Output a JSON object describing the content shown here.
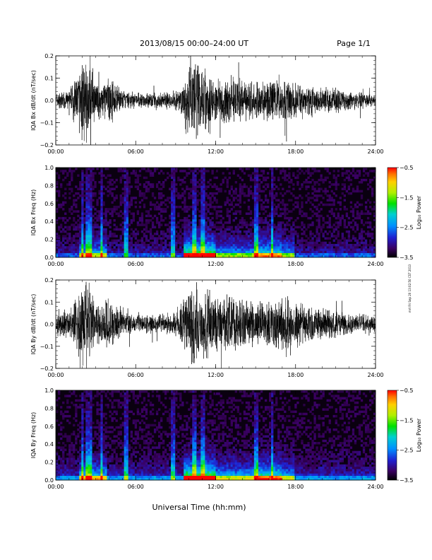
{
  "header": {
    "title": "2013/08/15  00:00–24:00 UT",
    "page": "Page 1/1"
  },
  "side_stamp": "mrt Fri Sep 20 13:02:50 CST 2013",
  "chart_data": [
    {
      "type": "line",
      "ylabel": "IQA Bx dB/dt (nT/sec)",
      "ylim": [
        -0.2,
        0.2
      ],
      "yticks": [
        "0.2",
        "0.1",
        "0.0",
        "−0.1",
        "−0.2"
      ],
      "xticks": [
        "00:00",
        "06:00",
        "12:00",
        "18:00",
        "24:00"
      ],
      "xlim_hours": [
        0,
        24
      ],
      "amplitude_envelope": {
        "hours": [
          0,
          1,
          2,
          2.5,
          3,
          4,
          5,
          6,
          7,
          8,
          9,
          9.5,
          10,
          10.5,
          11,
          12,
          13,
          14,
          15,
          16,
          17,
          18,
          19,
          20,
          21,
          22,
          23,
          24
        ],
        "amp": [
          0.04,
          0.05,
          0.2,
          0.2,
          0.08,
          0.12,
          0.05,
          0.04,
          0.04,
          0.04,
          0.05,
          0.08,
          0.2,
          0.2,
          0.2,
          0.1,
          0.12,
          0.1,
          0.1,
          0.1,
          0.12,
          0.09,
          0.08,
          0.07,
          0.06,
          0.05,
          0.04,
          0.03
        ]
      }
    },
    {
      "type": "heatmap",
      "ylabel": "IQA Bx Freq (Hz)",
      "ylim": [
        0.0,
        1.0
      ],
      "yticks": [
        "1.0",
        "0.8",
        "0.6",
        "0.4",
        "0.2",
        "0.0"
      ],
      "xticks": [
        "00:00",
        "06:00",
        "12:00",
        "18:00",
        "24:00"
      ],
      "colorbar": {
        "label": "Log₁₀ Power",
        "range": [
          -3.5,
          -0.5
        ],
        "ticks": [
          "−0.5",
          "−1.5",
          "−2.5",
          "−3.5"
        ]
      }
    },
    {
      "type": "line",
      "ylabel": "IQA By dB/dt (nT/sec)",
      "ylim": [
        -0.2,
        0.2
      ],
      "yticks": [
        "0.2",
        "0.1",
        "0.0",
        "−0.1",
        "−0.2"
      ],
      "xticks": [
        "00:00",
        "06:00",
        "12:00",
        "18:00",
        "24:00"
      ],
      "xlim_hours": [
        0,
        24
      ],
      "amplitude_envelope": {
        "hours": [
          0,
          1,
          2,
          2.5,
          3,
          4,
          5,
          6,
          7,
          8,
          9,
          9.5,
          10,
          10.5,
          11,
          12,
          13,
          14,
          15,
          16,
          17,
          18,
          19,
          20,
          21,
          22,
          23,
          24
        ],
        "amp": [
          0.06,
          0.07,
          0.2,
          0.2,
          0.1,
          0.12,
          0.06,
          0.05,
          0.05,
          0.05,
          0.06,
          0.1,
          0.2,
          0.2,
          0.2,
          0.15,
          0.15,
          0.13,
          0.12,
          0.12,
          0.14,
          0.12,
          0.1,
          0.08,
          0.07,
          0.06,
          0.05,
          0.04
        ]
      }
    },
    {
      "type": "heatmap",
      "ylabel": "IQA By Freq (Hz)",
      "ylim": [
        0.0,
        1.0
      ],
      "yticks": [
        "1.0",
        "0.8",
        "0.6",
        "0.4",
        "0.2",
        "0.0"
      ],
      "xticks": [
        "00:00",
        "06:00",
        "12:00",
        "18:00",
        "24:00"
      ],
      "colorbar": {
        "label": "Log₁₀ Power",
        "range": [
          -3.5,
          -0.5
        ],
        "ticks": [
          "−0.5",
          "−1.5",
          "−2.5",
          "−3.5"
        ]
      }
    }
  ],
  "xlabel": "Universal Time (hh:mm)"
}
